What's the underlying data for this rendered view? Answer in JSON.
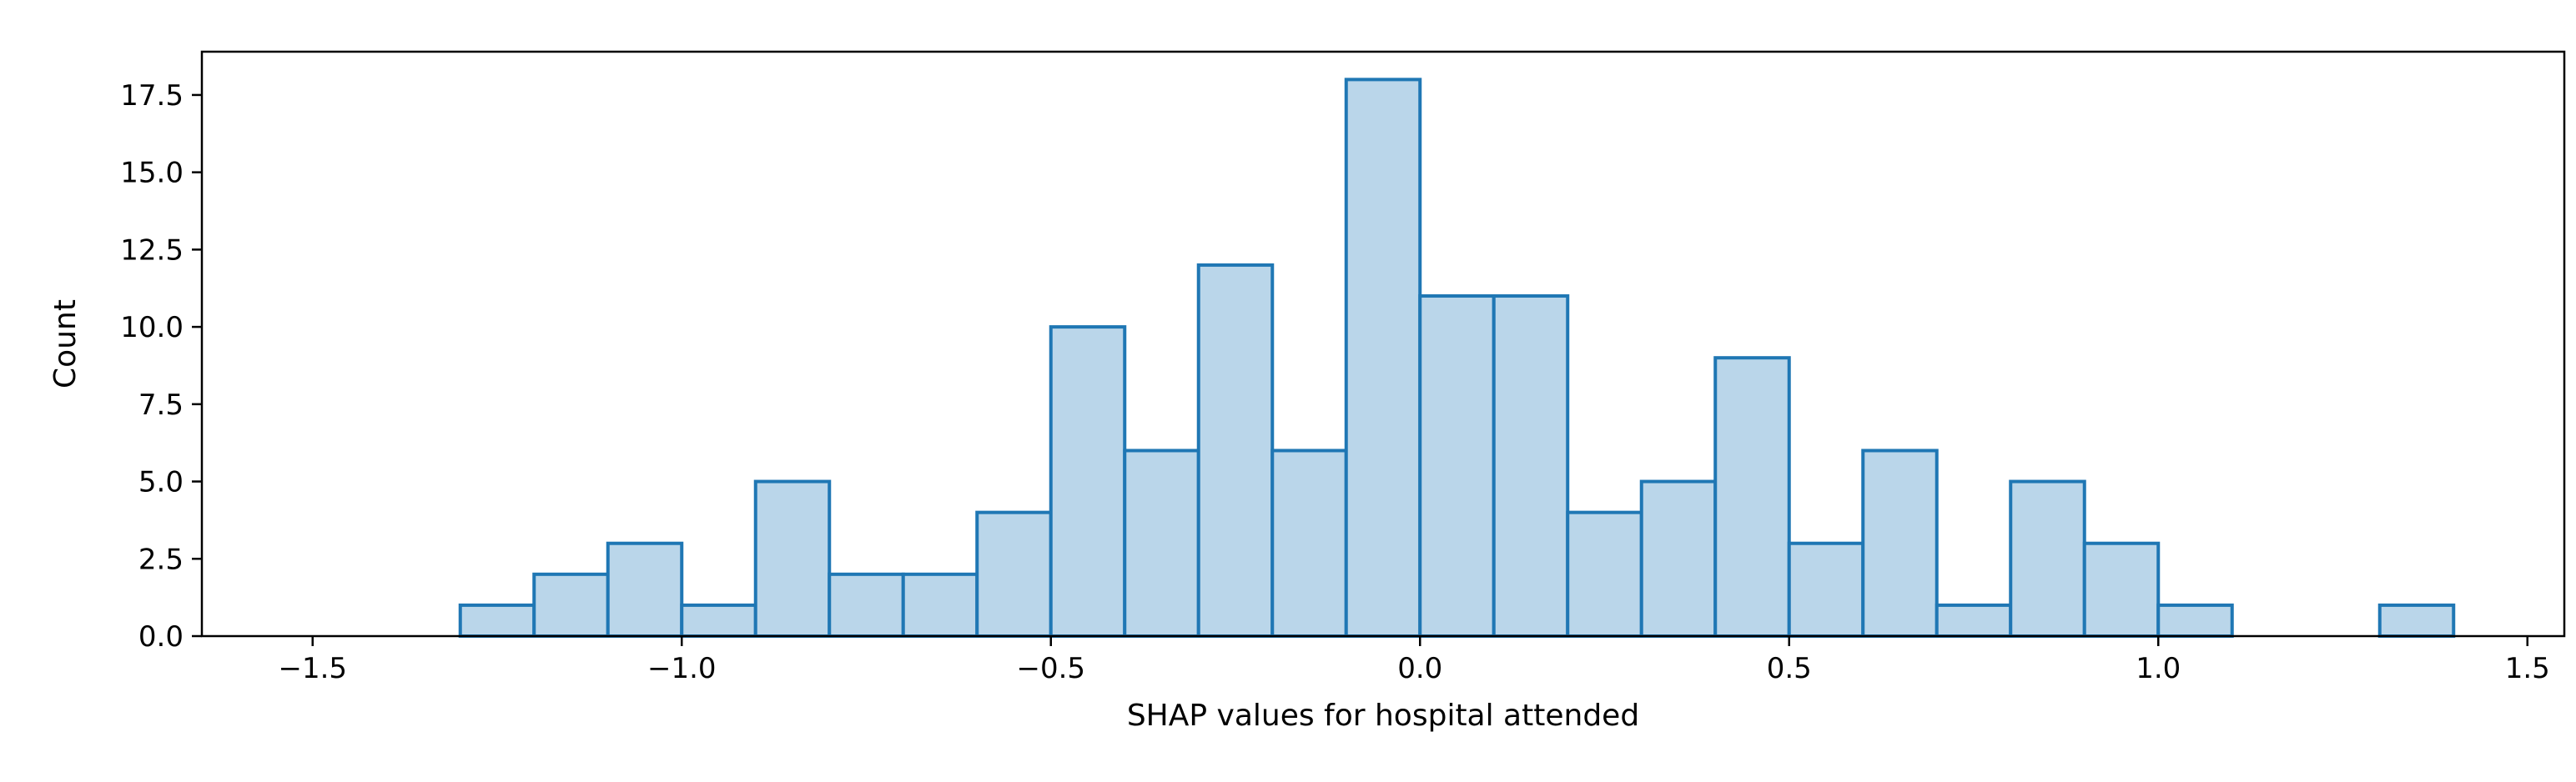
{
  "chart_data": {
    "type": "bar",
    "title": "",
    "xlabel": "SHAP values for hospital attended",
    "ylabel": "Count",
    "xlim": [
      -1.65,
      1.55
    ],
    "ylim": [
      0,
      18.9
    ],
    "x_ticks": [
      -1.5,
      -1.0,
      -0.5,
      0.0,
      0.5,
      1.0,
      1.5
    ],
    "x_tick_labels": [
      "−1.5",
      "−1.0",
      "−0.5",
      "0.0",
      "0.5",
      "1.0",
      "1.5"
    ],
    "y_ticks": [
      0.0,
      2.5,
      5.0,
      7.5,
      10.0,
      12.5,
      15.0,
      17.5
    ],
    "y_tick_labels": [
      "0.0",
      "2.5",
      "5.0",
      "7.5",
      "10.0",
      "12.5",
      "15.0",
      "17.5"
    ],
    "bin_width": 0.1,
    "bin_edges_start": [
      -1.5,
      -1.4,
      -1.3,
      -1.2,
      -1.1,
      -1.0,
      -0.9,
      -0.8,
      -0.7,
      -0.6,
      -0.5,
      -0.4,
      -0.3,
      -0.2,
      -0.1,
      0.0,
      0.1,
      0.2,
      0.3,
      0.4,
      0.5,
      0.6,
      0.7,
      0.8,
      0.9,
      1.0,
      1.1,
      1.2,
      1.3
    ],
    "values": [
      0,
      0,
      1,
      2,
      3,
      1,
      5,
      2,
      2,
      4,
      10,
      6,
      12,
      6,
      18,
      11,
      11,
      4,
      5,
      9,
      3,
      6,
      1,
      5,
      3,
      1,
      0,
      0,
      1
    ],
    "grid": false,
    "fill_color": "#bad6ea",
    "edge_color": "#1f77b4"
  }
}
